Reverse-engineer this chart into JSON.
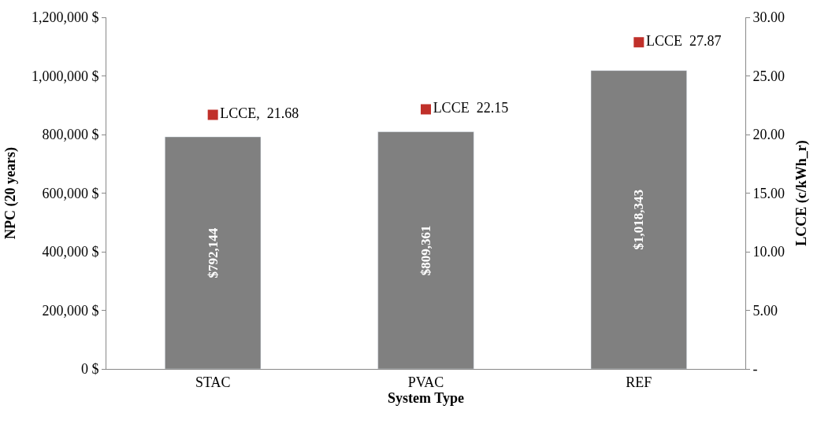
{
  "chart_data": {
    "type": "bar",
    "xlabel": "System Type",
    "ylabel": "NPC (20 years)",
    "y2label": "LCCE (c/kWh_r)",
    "categories": [
      "STAC",
      "PVAC",
      "REF"
    ],
    "series": [
      {
        "color": "#808080",
        "values": [
          792144,
          809361,
          1018343
        ],
        "value_labels": [
          "$792,144",
          "$809,361",
          "$1,018,343"
        ]
      },
      {
        "type": "scatter",
        "axis": "y2",
        "color": "#c0302a",
        "marker": "square",
        "values": [
          21.68,
          22.15,
          27.87
        ],
        "value_labels": [
          "LCCE,  21.68",
          "LCCE  22.15",
          "LCCE  27.87"
        ]
      }
    ],
    "ylim": [
      0,
      1200000
    ],
    "yticks": [
      {
        "value": 0,
        "label": "0 $"
      },
      {
        "value": 200000,
        "label": "200,000 $"
      },
      {
        "value": 400000,
        "label": "400,000 $"
      },
      {
        "value": 600000,
        "label": "600,000 $"
      },
      {
        "value": 800000,
        "label": "800,000 $"
      },
      {
        "value": 1000000,
        "label": "1,000,000 $"
      },
      {
        "value": 1200000,
        "label": "1,200,000 $"
      }
    ],
    "y2lim": [
      0,
      30
    ],
    "y2ticks": [
      {
        "value": 0,
        "label": "-"
      },
      {
        "value": 5,
        "label": "5.00"
      },
      {
        "value": 10,
        "label": "10.00"
      },
      {
        "value": 15,
        "label": "15.00"
      },
      {
        "value": 20,
        "label": "20.00"
      },
      {
        "value": 25,
        "label": "25.00"
      },
      {
        "value": 30,
        "label": "30.00"
      }
    ]
  }
}
